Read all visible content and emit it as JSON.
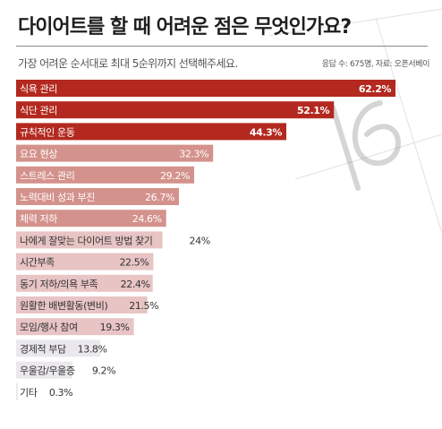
{
  "title": "다이어트를 할 때 어려운 점은 무엇인가요?",
  "subtitle": "가장 어려운 순서대로 최대 5순위까지 선택해주세요.",
  "source": "응답 수: 675명, 자료: 오픈서베이",
  "colors": {
    "top_bars": "#b3291f",
    "mid_bars": "#d4928c",
    "low_bars": "#e8c4c4",
    "bottom_bars": "#ebe8ed"
  },
  "chart_data": {
    "type": "bar",
    "orientation": "horizontal",
    "title": "다이어트를 할 때 어려운 점은 무엇인가요?",
    "subtitle": "가장 어려운 순서대로 최대 5순위까지 선택해주세요.",
    "categories": [
      "식욕 관리",
      "식단 관리",
      "규칙적인 운동",
      "요요 현상",
      "스트레스 관리",
      "노력대비 성과 부진",
      "체력 저하",
      "나에게 잘맞는 다이어트 방법 찾기",
      "시간부족",
      "동기 저하/의욕 부족",
      "원활한 배변활동(변비)",
      "모임/행사 참여",
      "경제적 부담",
      "우울감/우울증",
      "기타"
    ],
    "values": [
      62.2,
      52.1,
      44.3,
      32.3,
      29.2,
      26.7,
      24.6,
      24,
      22.5,
      22.4,
      21.5,
      19.3,
      13.8,
      9.2,
      0.3
    ],
    "value_labels": [
      "62.2%",
      "52.1%",
      "44.3%",
      "32.3%",
      "29.2%",
      "26.7%",
      "24.6%",
      "24%",
      "22.5%",
      "22.4%",
      "21.5%",
      "19.3%",
      "13.8%",
      "9.2%",
      "0.3%"
    ],
    "unit": "%",
    "xlim": [
      0,
      62.2
    ]
  }
}
